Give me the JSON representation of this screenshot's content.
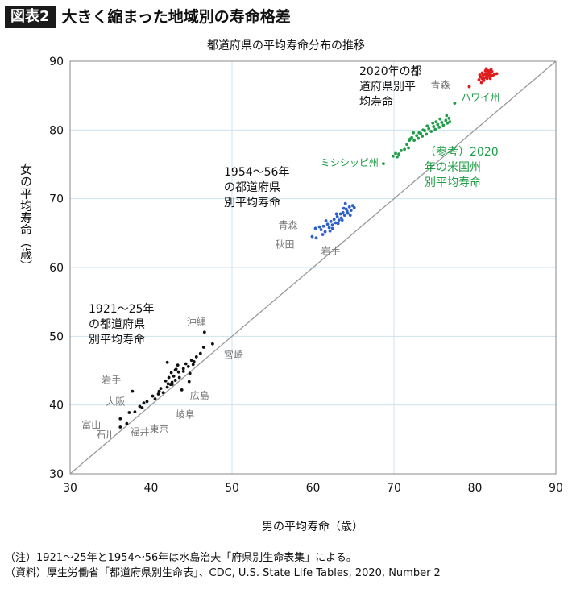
{
  "header": {
    "badge": "図表2",
    "title": "大きく縮まった地域別の寿命格差"
  },
  "notes": [
    "（注）1921〜25年と1954〜56年は水島治夫「府県別生命表集」による。",
    "（資料）厚生労働省「都道府県別生命表」、CDC, U.S. State Life Tables, 2020, Number 2"
  ],
  "colors": {
    "s1921": "#111111",
    "s1955": "#2d5fc9",
    "s2020": "#e01b1b",
    "sUS": "#1e9e46",
    "label_gray": "#777777",
    "grid": "#cfe3ef"
  },
  "chart_data": {
    "type": "scatter",
    "title": "都道府県の平均寿命分布の推移",
    "xlabel": "男の平均寿命（歳）",
    "ylabel": "女の平均寿命（歳）",
    "xlim": [
      30,
      90
    ],
    "ylim": [
      30,
      90
    ],
    "xticks": [
      "30",
      "40",
      "50",
      "60",
      "70",
      "80",
      "90"
    ],
    "yticks": [
      "30",
      "40",
      "50",
      "60",
      "70",
      "80",
      "90"
    ],
    "grid": true,
    "diagonal": "y = x",
    "series": [
      {
        "period": "1921〜25年",
        "label_lines": [
          "1921〜25年",
          "の都道府県",
          "別平均寿命"
        ],
        "points": [
          [
            36.2,
            38.0
          ],
          [
            37.0,
            37.3
          ],
          [
            37.3,
            38.9
          ],
          [
            38.6,
            39.8
          ],
          [
            38.9,
            39.6
          ],
          [
            39.1,
            40.3
          ],
          [
            40.5,
            40.9
          ],
          [
            40.9,
            41.6
          ],
          [
            41.0,
            42.0
          ],
          [
            41.5,
            41.8
          ],
          [
            42.0,
            42.6
          ],
          [
            42.4,
            43.0
          ],
          [
            42.2,
            44.0
          ],
          [
            42.6,
            43.3
          ],
          [
            42.8,
            44.2
          ],
          [
            43.0,
            43.6
          ],
          [
            42.5,
            44.7
          ],
          [
            43.0,
            45.1
          ],
          [
            43.5,
            44.0
          ],
          [
            43.3,
            45.8
          ],
          [
            44.0,
            45.3
          ],
          [
            44.3,
            46.0
          ],
          [
            44.6,
            45.6
          ],
          [
            45.0,
            46.5
          ],
          [
            45.3,
            46.3
          ],
          [
            45.6,
            47.0
          ],
          [
            46.1,
            47.5
          ],
          [
            44.8,
            44.6
          ],
          [
            42.0,
            46.2
          ],
          [
            43.8,
            42.2
          ],
          [
            42.6,
            43.0
          ],
          [
            41.8,
            43.5
          ],
          [
            42.1,
            43.1
          ],
          [
            44.0,
            44.9
          ],
          [
            43.1,
            45.2
          ],
          [
            45.2,
            45.9
          ],
          [
            41.2,
            42.4
          ],
          [
            44.7,
            43.4
          ],
          [
            38.0,
            39.0
          ],
          [
            40.2,
            41.3
          ],
          [
            46.5,
            48.4
          ],
          [
            47.6,
            48.9
          ],
          [
            46.6,
            50.6
          ],
          [
            37.7,
            42.0
          ],
          [
            36.2,
            36.8
          ],
          [
            39.5,
            40.5
          ],
          [
            43.4,
            44.8
          ]
        ],
        "annotations": [
          {
            "text": "岩手",
            "x": 37.7,
            "y": 42.0
          },
          {
            "text": "大阪",
            "x": 38.6,
            "y": 39.8
          },
          {
            "text": "富山",
            "x": 36.2,
            "y": 38.0
          },
          {
            "text": "石川",
            "x": 37.0,
            "y": 37.3
          },
          {
            "text": "東京",
            "x": 41.0,
            "y": 38.4
          },
          {
            "text": "福井",
            "x": 40.2,
            "y": 36.8
          },
          {
            "text": "沖縄",
            "x": 46.6,
            "y": 50.6
          },
          {
            "text": "宮崎",
            "x": 47.6,
            "y": 48.9
          },
          {
            "text": "広島",
            "x": 45.2,
            "y": 43.0
          },
          {
            "text": "岐阜",
            "x": 44.0,
            "y": 40.0
          }
        ]
      },
      {
        "period": "1954〜56年",
        "label_lines": [
          "1954〜56年",
          "の都道府県",
          "別平均寿命"
        ],
        "points": [
          [
            59.9,
            64.5
          ],
          [
            60.4,
            64.3
          ],
          [
            61.0,
            65.5
          ],
          [
            61.3,
            66.0
          ],
          [
            61.5,
            65.2
          ],
          [
            61.8,
            66.3
          ],
          [
            62.0,
            65.8
          ],
          [
            62.2,
            66.7
          ],
          [
            62.4,
            66.2
          ],
          [
            62.6,
            67.0
          ],
          [
            62.8,
            66.5
          ],
          [
            63.0,
            67.4
          ],
          [
            63.2,
            66.9
          ],
          [
            63.4,
            67.8
          ],
          [
            63.5,
            67.2
          ],
          [
            63.7,
            68.0
          ],
          [
            63.9,
            67.6
          ],
          [
            64.1,
            68.5
          ],
          [
            64.3,
            67.9
          ],
          [
            64.5,
            68.8
          ],
          [
            64.7,
            68.3
          ],
          [
            64.9,
            69.0
          ],
          [
            65.1,
            68.7
          ],
          [
            64.0,
            69.3
          ],
          [
            62.1,
            65.3
          ],
          [
            61.2,
            64.8
          ],
          [
            60.8,
            65.9
          ],
          [
            63.1,
            66.4
          ],
          [
            62.9,
            67.8
          ],
          [
            63.6,
            66.9
          ],
          [
            61.6,
            66.8
          ],
          [
            64.6,
            67.6
          ],
          [
            62.4,
            65.7
          ],
          [
            63.8,
            68.6
          ],
          [
            60.3,
            65.7
          ],
          [
            64.2,
            68.2
          ]
        ],
        "annotations": [
          {
            "text": "青森",
            "x": 60.3,
            "y": 65.7
          },
          {
            "text": "秋田",
            "x": 59.9,
            "y": 64.5
          },
          {
            "text": "岩手",
            "x": 60.4,
            "y": 64.3
          }
        ]
      },
      {
        "period": "2020年",
        "label_lines": [
          "2020年の都",
          "道府県別平",
          "均寿命"
        ],
        "points": [
          [
            79.3,
            86.3
          ],
          [
            80.5,
            87.3
          ],
          [
            80.7,
            87.7
          ],
          [
            80.9,
            87.5
          ],
          [
            81.0,
            88.0
          ],
          [
            81.2,
            87.6
          ],
          [
            81.3,
            88.1
          ],
          [
            81.4,
            87.7
          ],
          [
            81.5,
            88.2
          ],
          [
            81.6,
            87.8
          ],
          [
            81.7,
            88.3
          ],
          [
            81.8,
            87.9
          ],
          [
            81.9,
            88.4
          ],
          [
            82.0,
            88.0
          ],
          [
            82.1,
            88.5
          ],
          [
            82.2,
            87.9
          ],
          [
            81.1,
            87.2
          ],
          [
            81.5,
            87.5
          ],
          [
            80.8,
            86.9
          ],
          [
            82.4,
            88.1
          ],
          [
            81.3,
            88.6
          ],
          [
            81.9,
            87.5
          ],
          [
            82.0,
            88.8
          ],
          [
            80.6,
            88.0
          ],
          [
            81.6,
            88.6
          ],
          [
            81.0,
            87.4
          ],
          [
            82.7,
            88.2
          ],
          [
            81.4,
            88.9
          ],
          [
            80.9,
            88.3
          ],
          [
            81.8,
            88.6
          ]
        ],
        "annotations": [
          {
            "text": "青森",
            "x": 79.3,
            "y": 86.3
          }
        ]
      },
      {
        "period": "（参考）2020年の米国州別平均寿命",
        "label_lines": [
          "（参考）2020",
          "年の米国州",
          "別平均寿命"
        ],
        "points": [
          [
            68.7,
            75.1
          ],
          [
            69.9,
            76.2
          ],
          [
            70.2,
            76.6
          ],
          [
            70.6,
            76.5
          ],
          [
            70.9,
            77.0
          ],
          [
            71.3,
            77.2
          ],
          [
            71.6,
            77.9
          ],
          [
            71.9,
            78.5
          ],
          [
            72.2,
            78.9
          ],
          [
            72.5,
            78.5
          ],
          [
            72.8,
            79.2
          ],
          [
            73.0,
            78.8
          ],
          [
            73.3,
            79.5
          ],
          [
            73.5,
            79.1
          ],
          [
            73.8,
            79.9
          ],
          [
            74.0,
            79.4
          ],
          [
            74.3,
            80.2
          ],
          [
            74.6,
            79.8
          ],
          [
            74.9,
            80.5
          ],
          [
            75.1,
            80.1
          ],
          [
            75.4,
            80.8
          ],
          [
            75.6,
            80.4
          ],
          [
            75.9,
            81.1
          ],
          [
            76.1,
            80.7
          ],
          [
            76.4,
            81.4
          ],
          [
            76.6,
            81.0
          ],
          [
            76.8,
            81.7
          ],
          [
            76.5,
            82.1
          ],
          [
            75.2,
            81.2
          ],
          [
            74.1,
            80.6
          ],
          [
            73.6,
            80.0
          ],
          [
            72.4,
            79.6
          ],
          [
            71.8,
            77.4
          ],
          [
            70.4,
            76.1
          ],
          [
            75.7,
            81.6
          ],
          [
            76.9,
            81.2
          ],
          [
            74.8,
            81.0
          ],
          [
            73.1,
            79.6
          ],
          [
            72.0,
            78.7
          ],
          [
            77.5,
            83.9
          ]
        ],
        "annotations": [
          {
            "text": "ミシシッピ州",
            "x": 68.7,
            "y": 75.1
          },
          {
            "text": "ハワイ州",
            "x": 77.5,
            "y": 83.9
          }
        ]
      }
    ]
  }
}
